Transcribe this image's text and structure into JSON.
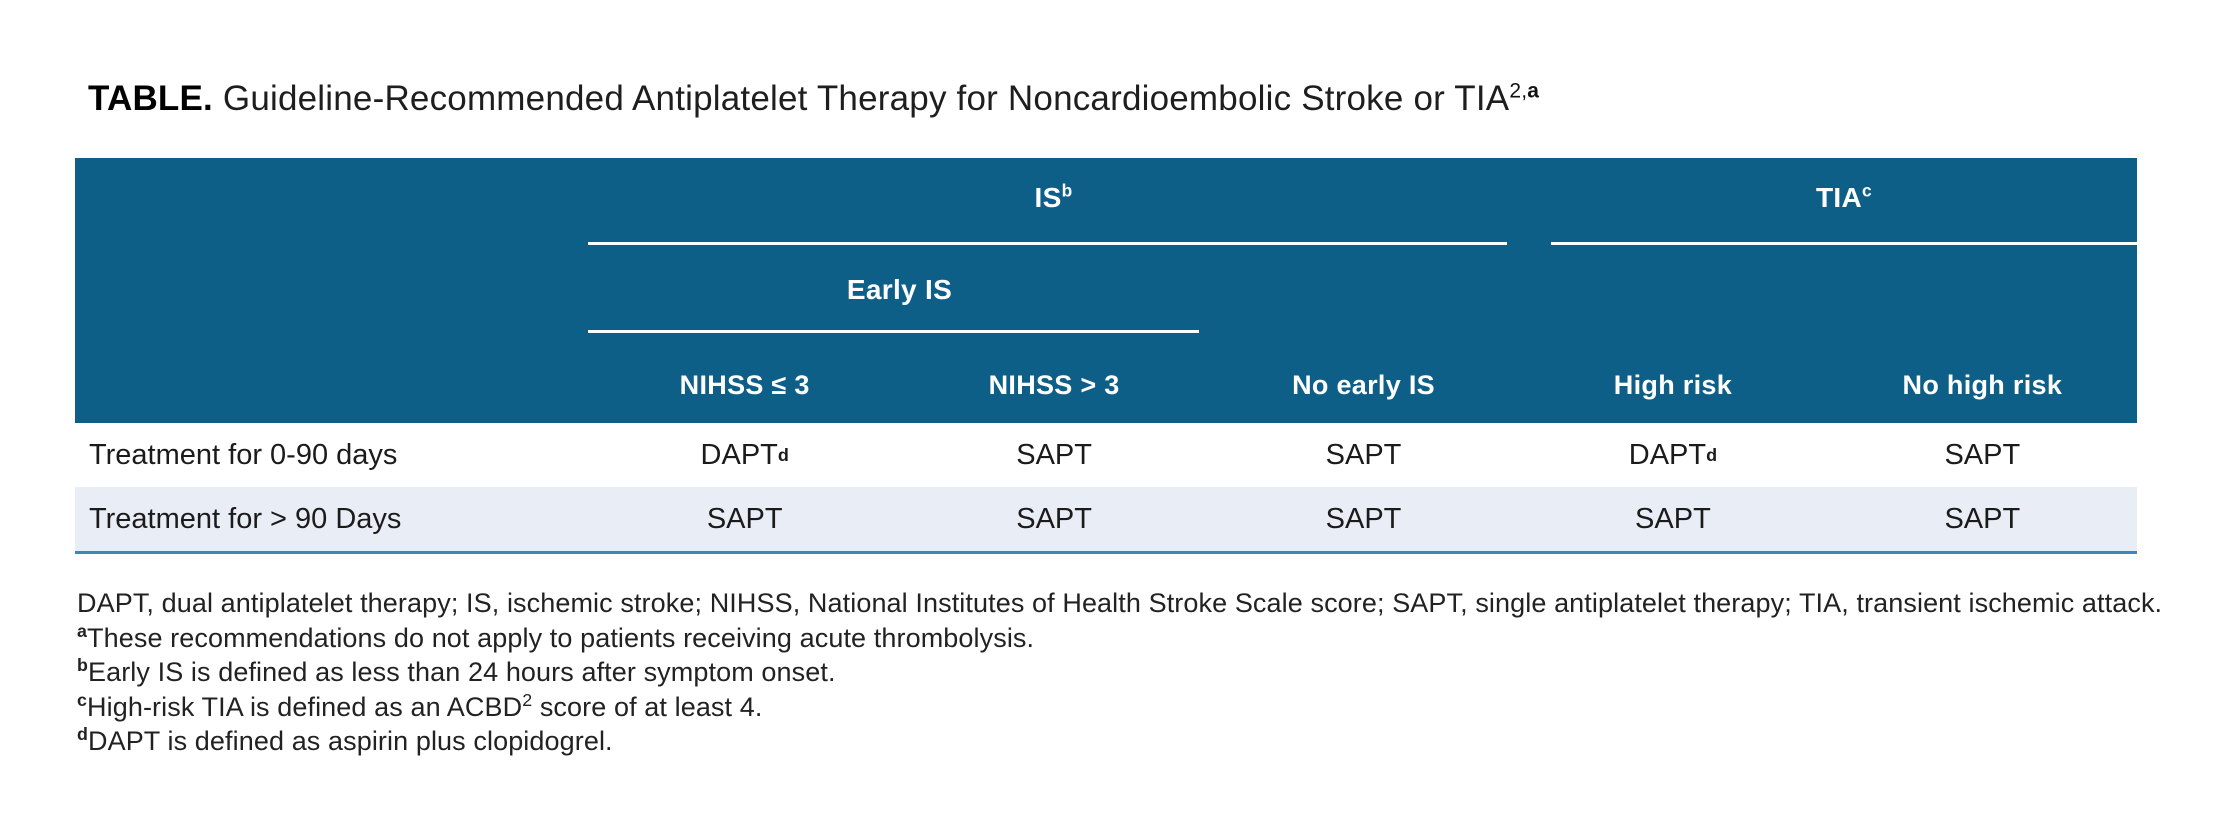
{
  "title": {
    "bold_label": "TABLE.",
    "text": " Guideline-Recommended Antiplatelet Therapy for Noncardioembolic Stroke or TIA",
    "sup_regular": "2,",
    "sup_bold": "a"
  },
  "table": {
    "groups": {
      "is": {
        "label": "IS",
        "sup": "b"
      },
      "tia": {
        "label": "TIA",
        "sup": "c"
      }
    },
    "early_is_label": "Early IS",
    "columns": [
      "NIHSS ≤ 3",
      "NIHSS > 3",
      "No early IS",
      "High risk",
      "No high risk"
    ],
    "rows": [
      {
        "label": "Treatment for 0-90 days",
        "cells": [
          {
            "text": "DAPT",
            "sup": "d"
          },
          {
            "text": "SAPT",
            "sup": ""
          },
          {
            "text": "SAPT",
            "sup": ""
          },
          {
            "text": "DAPT",
            "sup": "d"
          },
          {
            "text": "SAPT",
            "sup": ""
          }
        ]
      },
      {
        "label": "Treatment for > 90 Days",
        "cells": [
          {
            "text": "SAPT",
            "sup": ""
          },
          {
            "text": "SAPT",
            "sup": ""
          },
          {
            "text": "SAPT",
            "sup": ""
          },
          {
            "text": "SAPT",
            "sup": ""
          },
          {
            "text": "SAPT",
            "sup": ""
          }
        ]
      }
    ]
  },
  "footnotes": [
    {
      "marker": "",
      "text": "DAPT, dual antiplatelet therapy; IS, ischemic stroke; NIHSS, National Institutes of Health Stroke Scale score; SAPT, single antiplatelet therapy; TIA, transient ischemic attack.",
      "sup": "",
      "text2": ""
    },
    {
      "marker": "a",
      "text": "These recommendations do not apply to patients receiving acute thrombolysis.",
      "sup": "",
      "text2": ""
    },
    {
      "marker": "b",
      "text": "Early IS is defined as less than 24 hours after symptom onset.",
      "sup": "",
      "text2": ""
    },
    {
      "marker": "c",
      "text": "High-risk TIA is defined as an ACBD",
      "sup": "2",
      "text2": " score of at least 4."
    },
    {
      "marker": "d",
      "text": "DAPT is defined as aspirin plus clopidogrel.",
      "sup": "",
      "text2": ""
    }
  ],
  "colors": {
    "header_bg": "#0E5F88",
    "header_text": "#FFFFFF",
    "row_alt_bg": "#E9EEF6",
    "bottom_border": "#3B87BA",
    "body_text": "#1B1B1B"
  }
}
